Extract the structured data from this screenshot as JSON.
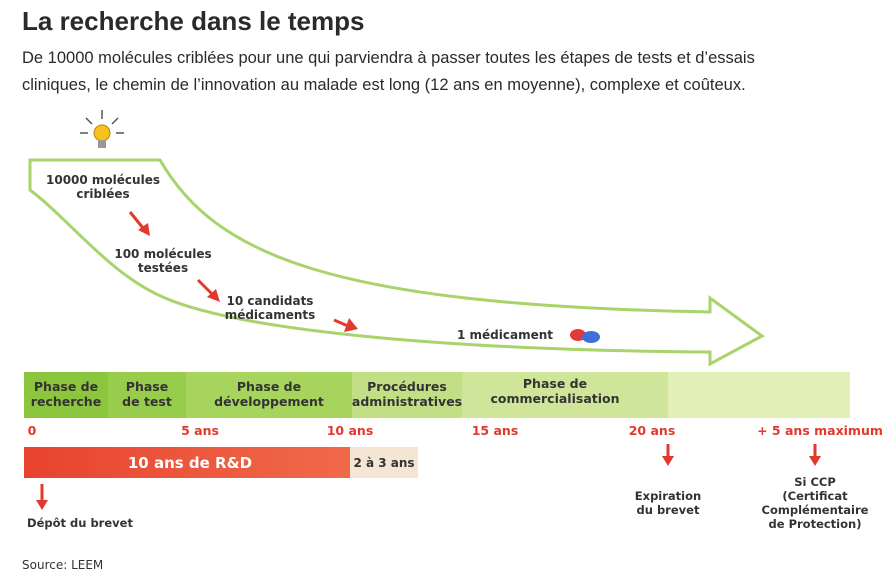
{
  "header": {
    "title": "La recherche dans le temps",
    "subtitle": [
      "De 10000 molécules criblées pour une qui parviendra à passer toutes les étapes de tests et d’essais",
      "cliniques, le chemin de l’innovation au malade est long (12 ans en moyenne), complexe et coûteux."
    ]
  },
  "funnel": {
    "stages": [
      {
        "lines": [
          "10000 molécules",
          "criblées"
        ]
      },
      {
        "lines": [
          "100 molécules",
          "testées"
        ]
      },
      {
        "lines": [
          "10 candidats",
          "médicaments"
        ]
      },
      {
        "lines": [
          "1 médicament"
        ]
      }
    ]
  },
  "phases": [
    {
      "lines": [
        "Phase de",
        "recherche"
      ]
    },
    {
      "lines": [
        "Phase",
        "de test"
      ]
    },
    {
      "lines": [
        "Phase de",
        "développement"
      ]
    },
    {
      "lines": [
        "Procédures",
        "administratives"
      ]
    },
    {
      "lines": [
        "Phase de",
        "commercialisation"
      ]
    }
  ],
  "timeline": {
    "ticks": [
      "0",
      "5 ans",
      "10 ans",
      "15 ans",
      "20 ans",
      "+ 5 ans maximum"
    ]
  },
  "bars": {
    "rd": "10 ans de R&D",
    "admin": "2 à 3 ans"
  },
  "notes": {
    "patent_filing": [
      "Dépôt du brevet"
    ],
    "patent_expiry": [
      "Expiration",
      "du brevet"
    ],
    "ccp": [
      "Si CCP",
      "(Certificat",
      "Complémentaire",
      "de Protection)"
    ]
  },
  "source": "Source: LEEM"
}
